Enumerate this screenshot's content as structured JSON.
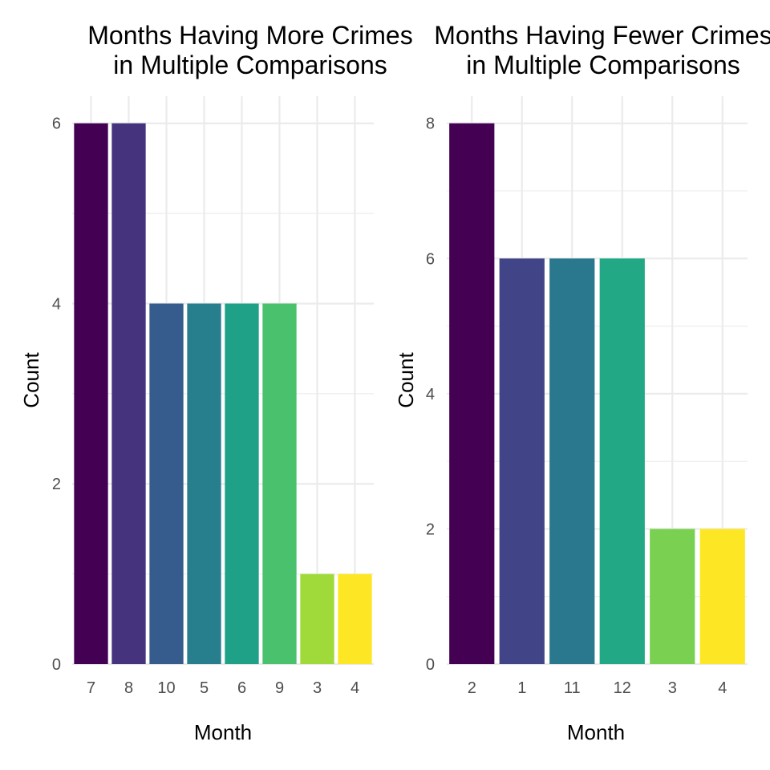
{
  "chart_data": [
    {
      "type": "bar",
      "title_lines": [
        "Months Having More Crimes",
        " in Multiple Comparisons"
      ],
      "xlabel": "Month",
      "ylabel": "Count",
      "categories": [
        "7",
        "8",
        "10",
        "5",
        "6",
        "9",
        "3",
        "4"
      ],
      "values": [
        6,
        6,
        4,
        4,
        4,
        4,
        1,
        1
      ],
      "ylim": [
        0,
        6
      ],
      "yticks": [
        0,
        2,
        4,
        6
      ],
      "grid": true,
      "legend": "none",
      "colors": [
        "#440154",
        "#46337E",
        "#365C8D",
        "#277F8E",
        "#1FA187",
        "#4AC16D",
        "#9FDA3A",
        "#FDE725"
      ]
    },
    {
      "type": "bar",
      "title_lines": [
        "Months Having Fewer Crimes",
        " in Multiple Comparisons"
      ],
      "xlabel": "Month",
      "ylabel": "Count",
      "categories": [
        "2",
        "1",
        "11",
        "12",
        "3",
        "4"
      ],
      "values": [
        8,
        6,
        6,
        6,
        2,
        2
      ],
      "ylim": [
        0,
        8
      ],
      "yticks": [
        0,
        2,
        4,
        6,
        8
      ],
      "grid": true,
      "legend": "none",
      "colors": [
        "#440154",
        "#414487",
        "#2A788E",
        "#22A884",
        "#7AD151",
        "#FDE725"
      ]
    }
  ]
}
